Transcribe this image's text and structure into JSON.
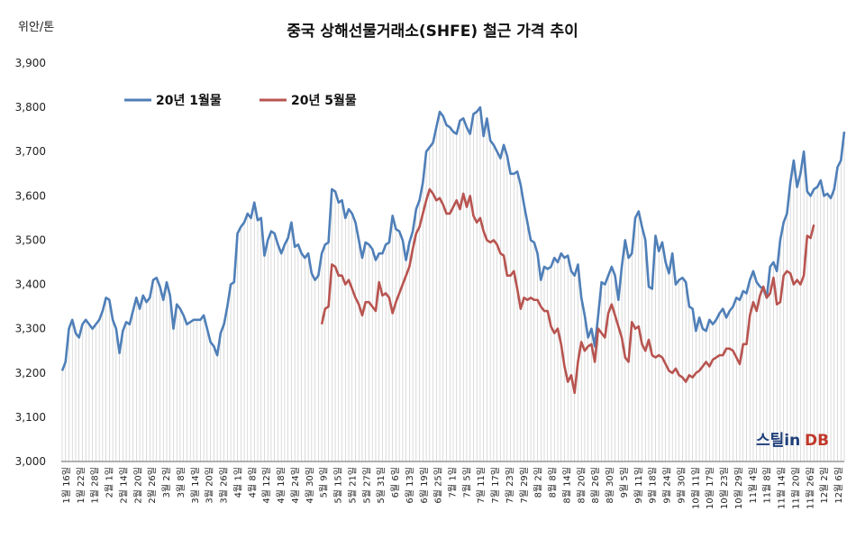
{
  "chart_data": {
    "type": "line",
    "title": "중국 상해선물거래소(SHFE) 철근 가격 추이",
    "ylabel": "위안/톤",
    "ylim": [
      3000,
      3900
    ],
    "yticks": [
      "3,000",
      "3,100",
      "3,200",
      "3,300",
      "3,400",
      "3,500",
      "3,600",
      "3,700",
      "3,800",
      "3,900"
    ],
    "grid": "vertical drop lines",
    "legend_position": "top-left",
    "x_tick_labels": [
      "1월 16일",
      "1월 22일",
      "1월 28일",
      "2월 1일",
      "2월 14일",
      "2월 20일",
      "2월 26일",
      "3월 2일",
      "3월 8일",
      "3월 14일",
      "3월 20일",
      "3월 26일",
      "4월 1일",
      "4월 8일",
      "4월 12일",
      "4월 18일",
      "4월 24일",
      "4월 30일",
      "5월 9일",
      "5월 15일",
      "5월 21일",
      "5월 27일",
      "5월 31일",
      "6월 6일",
      "6월 13일",
      "6월 19일",
      "6월 25일",
      "7월 1일",
      "7월 5일",
      "7월 11일",
      "7월 17일",
      "7월 23일",
      "7월 29일",
      "8월 2일",
      "8월 8일",
      "8월 14일",
      "8월 20일",
      "8월 26일",
      "8월 30일",
      "9월 5일",
      "9월 11일",
      "9월 18일",
      "9월 24일",
      "9월 30일",
      "10월 11일",
      "10월 17일",
      "10월 23일",
      "10월 29일",
      "11월 4일",
      "11월 8일",
      "11월 14일",
      "11월 20일",
      "11월 26일",
      "12월 2일",
      "12월 6일"
    ],
    "series": [
      {
        "name": "20년 1월물",
        "color": "#4f7fb8",
        "start_index": 0,
        "values": [
          3205,
          3225,
          3300,
          3320,
          3290,
          3280,
          3310,
          3320,
          3310,
          3300,
          3310,
          3320,
          3340,
          3370,
          3365,
          3320,
          3300,
          3245,
          3295,
          3315,
          3310,
          3340,
          3370,
          3345,
          3375,
          3360,
          3370,
          3410,
          3415,
          3395,
          3365,
          3405,
          3375,
          3300,
          3355,
          3345,
          3330,
          3310,
          3315,
          3320,
          3320,
          3320,
          3330,
          3300,
          3270,
          3260,
          3240,
          3290,
          3310,
          3350,
          3400,
          3405,
          3515,
          3530,
          3540,
          3560,
          3550,
          3585,
          3545,
          3550,
          3465,
          3500,
          3520,
          3515,
          3490,
          3470,
          3490,
          3505,
          3540,
          3485,
          3490,
          3470,
          3460,
          3470,
          3425,
          3410,
          3420,
          3470,
          3490,
          3495,
          3615,
          3610,
          3585,
          3590,
          3550,
          3570,
          3560,
          3540,
          3500,
          3460,
          3495,
          3490,
          3480,
          3455,
          3470,
          3470,
          3490,
          3495,
          3555,
          3525,
          3520,
          3500,
          3455,
          3495,
          3520,
          3570,
          3590,
          3630,
          3700,
          3710,
          3720,
          3755,
          3790,
          3780,
          3760,
          3755,
          3745,
          3740,
          3770,
          3775,
          3755,
          3740,
          3785,
          3790,
          3800,
          3735,
          3775,
          3725,
          3715,
          3700,
          3685,
          3715,
          3690,
          3650,
          3650,
          3655,
          3625,
          3580,
          3540,
          3500,
          3495,
          3470,
          3410,
          3440,
          3435,
          3440,
          3460,
          3450,
          3470,
          3460,
          3465,
          3430,
          3420,
          3445,
          3370,
          3330,
          3280,
          3300,
          3260,
          3330,
          3405,
          3400,
          3420,
          3440,
          3420,
          3365,
          3440,
          3500,
          3460,
          3470,
          3550,
          3565,
          3530,
          3500,
          3395,
          3390,
          3510,
          3475,
          3495,
          3450,
          3425,
          3470,
          3400,
          3410,
          3415,
          3405,
          3350,
          3345,
          3295,
          3325,
          3300,
          3295,
          3320,
          3310,
          3320,
          3335,
          3345,
          3325,
          3340,
          3350,
          3370,
          3365,
          3385,
          3380,
          3410,
          3430,
          3405,
          3395,
          3390,
          3370,
          3440,
          3450,
          3430,
          3500,
          3540,
          3560,
          3630,
          3680,
          3620,
          3650,
          3700,
          3610,
          3600,
          3615,
          3620,
          3635,
          3600,
          3605,
          3595,
          3615,
          3665,
          3680,
          3745
        ]
      },
      {
        "name": "20년 5월물",
        "color": "#b85450",
        "start_index": 77,
        "values": [
          3310,
          3345,
          3350,
          3445,
          3440,
          3420,
          3420,
          3400,
          3410,
          3390,
          3370,
          3355,
          3330,
          3360,
          3360,
          3350,
          3340,
          3405,
          3375,
          3380,
          3370,
          3335,
          3360,
          3380,
          3400,
          3420,
          3440,
          3480,
          3515,
          3530,
          3560,
          3590,
          3615,
          3605,
          3590,
          3595,
          3580,
          3560,
          3560,
          3575,
          3590,
          3570,
          3605,
          3575,
          3600,
          3555,
          3540,
          3550,
          3520,
          3500,
          3495,
          3500,
          3490,
          3470,
          3465,
          3420,
          3420,
          3430,
          3390,
          3345,
          3370,
          3365,
          3370,
          3365,
          3365,
          3350,
          3340,
          3340,
          3305,
          3290,
          3300,
          3265,
          3215,
          3180,
          3195,
          3155,
          3225,
          3270,
          3250,
          3260,
          3265,
          3225,
          3300,
          3290,
          3280,
          3335,
          3355,
          3330,
          3305,
          3280,
          3235,
          3225,
          3315,
          3300,
          3305,
          3265,
          3250,
          3275,
          3240,
          3235,
          3240,
          3235,
          3220,
          3205,
          3200,
          3210,
          3195,
          3190,
          3180,
          3195,
          3190,
          3200,
          3205,
          3215,
          3225,
          3215,
          3230,
          3235,
          3240,
          3240,
          3255,
          3255,
          3250,
          3235,
          3220,
          3265,
          3265,
          3330,
          3360,
          3340,
          3375,
          3395,
          3370,
          3380,
          3415,
          3355,
          3360,
          3420,
          3430,
          3425,
          3400,
          3410,
          3400,
          3420,
          3510,
          3505,
          3535
        ]
      }
    ]
  },
  "watermark": {
    "part1": "스틸in",
    "part2": "DB"
  }
}
